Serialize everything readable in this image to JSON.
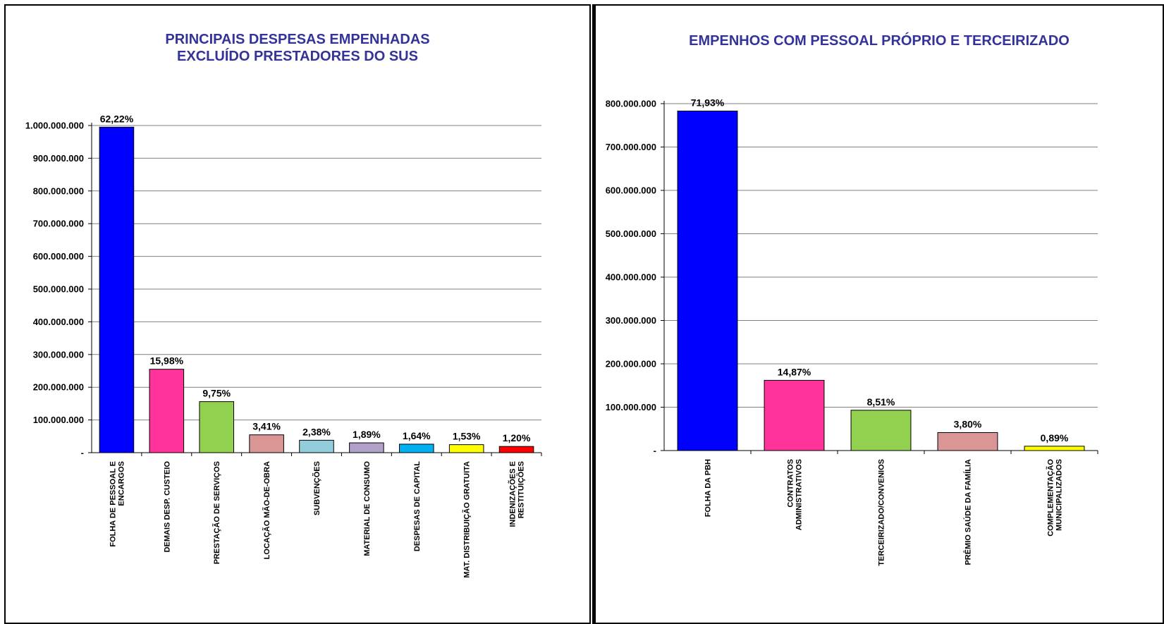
{
  "chart_data": [
    {
      "type": "bar",
      "title": "PRINCIPAIS DESPESAS EMPENHADAS\nEXCLUÍDO PRESTADORES DO SUS",
      "categories": [
        "FOLHA DE PESSOAL E ENCARGOS",
        "DEMAIS DESP. CUSTEIO",
        "PRESTAÇÃO DE SERVIÇOS",
        "LOCAÇÃO MÃO-DE-OBRA",
        "SUBVENÇÕES",
        "MATERIAL DE CONSUMO",
        "DESPESAS DE CAPITAL",
        "MAT. DISTRIBUIÇÃO GRATUITA",
        "INDENIZAÇÕES E RESTITUIÇÕES"
      ],
      "category_lines": [
        [
          "FOLHA DE PESSOAL E",
          "ENCARGOS"
        ],
        [
          "DEMAIS DESP. CUSTEIO"
        ],
        [
          "PRESTAÇÃO DE SERVIÇOS"
        ],
        [
          "LOCAÇÃO MÃO-DE-OBRA"
        ],
        [
          "SUBVENÇÕES"
        ],
        [
          "MATERIAL DE CONSUMO"
        ],
        [
          "DESPESAS DE CAPITAL"
        ],
        [
          "MAT. DISTRIBUIÇÃO GRATUITA"
        ],
        [
          "INDENIZAÇÕES E",
          "RESTITUIÇÕES"
        ]
      ],
      "values": [
        995000000,
        255000000,
        156000000,
        54500000,
        38000000,
        30000000,
        26000000,
        24500000,
        19000000
      ],
      "data_labels": [
        "62,22%",
        "15,98%",
        "9,75%",
        "3,41%",
        "2,38%",
        "1,89%",
        "1,64%",
        "1,53%",
        "1,20%"
      ],
      "colors": [
        "#0000ff",
        "#ff3399",
        "#92d050",
        "#da9694",
        "#92cddc",
        "#b1a0c7",
        "#00b0f0",
        "#ffff00",
        "#ff0000"
      ],
      "ylim": [
        0,
        1000000000
      ],
      "yticks": [
        0,
        100000000,
        200000000,
        300000000,
        400000000,
        500000000,
        600000000,
        700000000,
        800000000,
        900000000,
        1000000000
      ],
      "ytick_labels": [
        "-",
        "100.000.000",
        "200.000.000",
        "300.000.000",
        "400.000.000",
        "500.000.000",
        "600.000.000",
        "700.000.000",
        "800.000.000",
        "900.000.000",
        "1.000.000.000"
      ],
      "grid": true,
      "legend": "none"
    },
    {
      "type": "bar",
      "title": "EMPENHOS COM PESSOAL PRÓPRIO E TERCEIRIZADO",
      "categories": [
        "FOLHA DA PBH",
        "CONTRATOS ADMINISTRATIVOS",
        "TERCEIRIZADO/CONVENIOS",
        "PRÊMIO SAÚDE DA FAMÍLIA",
        "COMPLEMENTAÇÃO MUNICIPALIZADOS"
      ],
      "category_lines": [
        [
          "FOLHA DA PBH"
        ],
        [
          "CONTRATOS",
          "ADMINISTRATIVOS"
        ],
        [
          "TERCEIRIZADO/CONVENIOS"
        ],
        [
          "PRÊMIO SAÚDE DA FAMÍLIA"
        ],
        [
          "COMPLEMENTAÇÃO",
          "MUNICIPALIZADOS"
        ]
      ],
      "values": [
        783000000,
        162000000,
        93000000,
        41500000,
        10000000
      ],
      "data_labels": [
        "71,93%",
        "14,87%",
        "8,51%",
        "3,80%",
        "0,89%"
      ],
      "colors": [
        "#0000ff",
        "#ff3399",
        "#92d050",
        "#da9694",
        "#ffff00"
      ],
      "ylim": [
        0,
        800000000
      ],
      "yticks": [
        0,
        100000000,
        200000000,
        300000000,
        400000000,
        500000000,
        600000000,
        700000000,
        800000000
      ],
      "ytick_labels": [
        "-",
        "100.000.000",
        "200.000.000",
        "300.000.000",
        "400.000.000",
        "500.000.000",
        "600.000.000",
        "700.000.000",
        "800.000.000"
      ],
      "grid": true,
      "legend": "none"
    }
  ]
}
